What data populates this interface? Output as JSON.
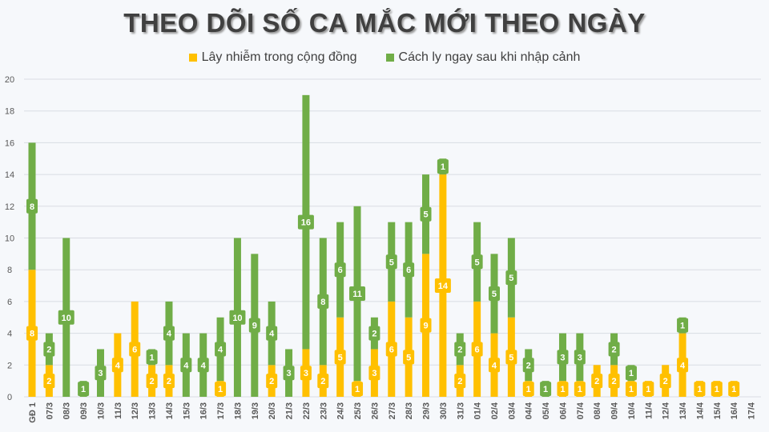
{
  "chart_data": {
    "type": "bar",
    "stacked": true,
    "title": "THEO DÕI SỐ CA MẮC MỚI THEO NGÀY",
    "ylim": [
      0,
      20
    ],
    "yticks": [
      0,
      2,
      4,
      6,
      8,
      10,
      12,
      14,
      16,
      18,
      20
    ],
    "grid": true,
    "legend_position": "top",
    "categories": [
      "GĐ 1",
      "07/3",
      "08/3",
      "09/3",
      "10/3",
      "11/3",
      "12/3",
      "13/3",
      "14/3",
      "15/3",
      "16/3",
      "17/3",
      "18/3",
      "19/3",
      "20/3",
      "21/3",
      "22/3",
      "23/3",
      "24/3",
      "25/3",
      "26/3",
      "27/3",
      "28/3",
      "29/3",
      "30/3",
      "31/3",
      "01/4",
      "02/4",
      "03/4",
      "04/4",
      "05/4",
      "06/4",
      "07/4",
      "08/4",
      "09/4",
      "10/4",
      "11/4",
      "12/4",
      "13/4",
      "14/4",
      "15/4",
      "16/4",
      "17/4"
    ],
    "series": [
      {
        "name": "Lây nhiễm trong cộng đồng",
        "color": "#ffc000",
        "values": [
          8,
          2,
          0,
          0,
          0,
          4,
          6,
          2,
          2,
          0,
          0,
          1,
          0,
          0,
          2,
          0,
          3,
          2,
          5,
          1,
          3,
          6,
          5,
          9,
          14,
          2,
          6,
          4,
          5,
          1,
          0,
          1,
          1,
          2,
          2,
          1,
          1,
          2,
          4,
          1,
          1,
          1,
          0
        ]
      },
      {
        "name": "Cách ly ngay sau khi nhập cảnh",
        "color": "#70ad47",
        "values": [
          8,
          2,
          10,
          1,
          3,
          0,
          0,
          1,
          4,
          4,
          4,
          4,
          10,
          9,
          4,
          3,
          16,
          8,
          6,
          11,
          2,
          5,
          6,
          5,
          1,
          2,
          5,
          5,
          5,
          2,
          1,
          3,
          3,
          0,
          2,
          1,
          0,
          0,
          1,
          0,
          0,
          0,
          0
        ]
      }
    ]
  }
}
